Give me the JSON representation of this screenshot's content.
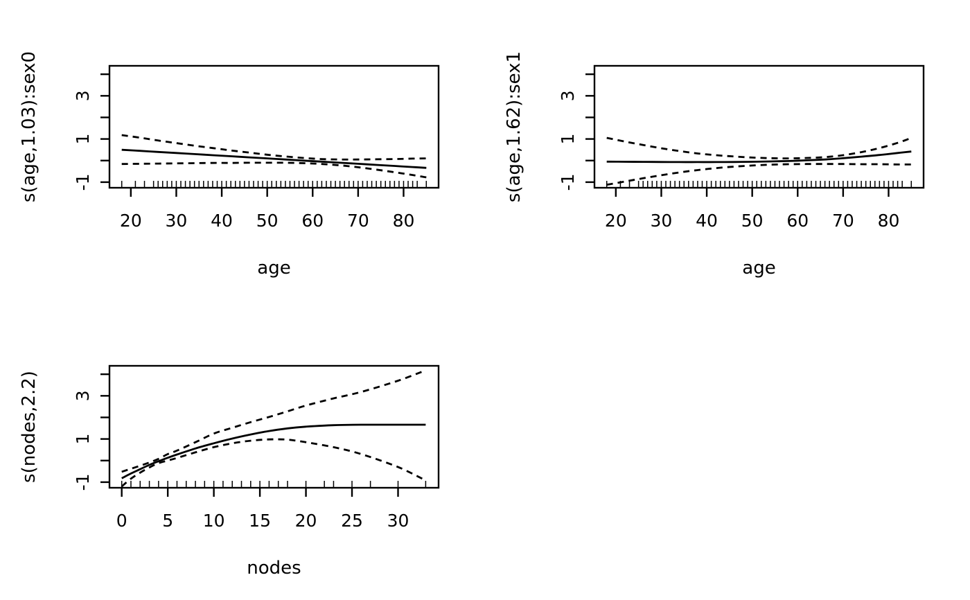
{
  "figure": {
    "description": "GAM smooth term plots (R plot.gam style), 2x2 grid, bottom-right cell empty",
    "background_color": "#ffffff",
    "line_color": "#000000"
  },
  "chart_data": [
    {
      "id": "s-age-sex0",
      "type": "line",
      "panel": "top-left",
      "title": "",
      "xlabel": "age",
      "ylabel": "s(age,1.03):sex0",
      "xlim": [
        15.3,
        87.7
      ],
      "ylim": [
        -1.26,
        4.39
      ],
      "grid": false,
      "legend_position": "none",
      "x_ticks": [
        {
          "v": 20,
          "label": "20"
        },
        {
          "v": 30,
          "label": "30"
        },
        {
          "v": 40,
          "label": "40"
        },
        {
          "v": 50,
          "label": "50"
        },
        {
          "v": 60,
          "label": "60"
        },
        {
          "v": 70,
          "label": "70"
        },
        {
          "v": 80,
          "label": "80"
        }
      ],
      "y_ticks": [
        {
          "v": -1,
          "label": "-1"
        },
        {
          "v": 0,
          "label": ""
        },
        {
          "v": 1,
          "label": "1"
        },
        {
          "v": 2,
          "label": ""
        },
        {
          "v": 3,
          "label": "3"
        },
        {
          "v": 4,
          "label": ""
        }
      ],
      "x": [
        18,
        22,
        26,
        30,
        34,
        38,
        42,
        46,
        50,
        54,
        58,
        62,
        66,
        70,
        74,
        78,
        82,
        85
      ],
      "series": [
        {
          "name": "fit",
          "style": "solid",
          "values": [
            0.5,
            0.45,
            0.4,
            0.35,
            0.3,
            0.25,
            0.2,
            0.15,
            0.1,
            0.05,
            0.0,
            -0.05,
            -0.1,
            -0.15,
            -0.2,
            -0.25,
            -0.3,
            -0.34
          ]
        },
        {
          "name": "upper-95ci",
          "style": "dashed",
          "values": [
            1.18,
            1.06,
            0.93,
            0.81,
            0.69,
            0.58,
            0.47,
            0.37,
            0.27,
            0.19,
            0.12,
            0.07,
            0.05,
            0.05,
            0.06,
            0.07,
            0.09,
            0.1
          ]
        },
        {
          "name": "lower-95ci",
          "style": "dashed",
          "values": [
            -0.16,
            -0.15,
            -0.14,
            -0.13,
            -0.12,
            -0.11,
            -0.11,
            -0.1,
            -0.1,
            -0.1,
            -0.12,
            -0.16,
            -0.22,
            -0.31,
            -0.42,
            -0.54,
            -0.67,
            -0.78
          ]
        }
      ],
      "rug_x": [
        18,
        21,
        23,
        25,
        26,
        27,
        28,
        29,
        30,
        31,
        32,
        33,
        34,
        35,
        36,
        37,
        38,
        39,
        40,
        41,
        42,
        43,
        44,
        45,
        46,
        47,
        48,
        49,
        50,
        51,
        52,
        53,
        54,
        55,
        56,
        57,
        58,
        59,
        60,
        61,
        62,
        63,
        64,
        65,
        66,
        67,
        68,
        69,
        70,
        71,
        72,
        73,
        74,
        75,
        76,
        77,
        78,
        79,
        80,
        81,
        82,
        83,
        85
      ]
    },
    {
      "id": "s-age-sex1",
      "type": "line",
      "panel": "top-right",
      "title": "",
      "xlabel": "age",
      "ylabel": "s(age,1.62):sex1",
      "xlim": [
        15.3,
        87.7
      ],
      "ylim": [
        -1.26,
        4.39
      ],
      "grid": false,
      "legend_position": "none",
      "x_ticks": [
        {
          "v": 20,
          "label": "20"
        },
        {
          "v": 30,
          "label": "30"
        },
        {
          "v": 40,
          "label": "40"
        },
        {
          "v": 50,
          "label": "50"
        },
        {
          "v": 60,
          "label": "60"
        },
        {
          "v": 70,
          "label": "70"
        },
        {
          "v": 80,
          "label": "80"
        }
      ],
      "y_ticks": [
        {
          "v": -1,
          "label": "-1"
        },
        {
          "v": 0,
          "label": ""
        },
        {
          "v": 1,
          "label": "1"
        },
        {
          "v": 2,
          "label": ""
        },
        {
          "v": 3,
          "label": "3"
        },
        {
          "v": 4,
          "label": ""
        }
      ],
      "x": [
        18,
        22,
        26,
        30,
        34,
        38,
        42,
        46,
        50,
        54,
        58,
        62,
        66,
        70,
        74,
        78,
        82,
        85
      ],
      "series": [
        {
          "name": "fit",
          "style": "solid",
          "values": [
            -0.05,
            -0.055,
            -0.06,
            -0.065,
            -0.07,
            -0.07,
            -0.07,
            -0.065,
            -0.055,
            -0.04,
            -0.02,
            0.01,
            0.05,
            0.11,
            0.18,
            0.26,
            0.35,
            0.42
          ]
        },
        {
          "name": "upper-95ci",
          "style": "dashed",
          "values": [
            1.05,
            0.88,
            0.72,
            0.57,
            0.44,
            0.33,
            0.25,
            0.19,
            0.14,
            0.11,
            0.1,
            0.12,
            0.16,
            0.25,
            0.39,
            0.58,
            0.82,
            1.05
          ]
        },
        {
          "name": "lower-95ci",
          "style": "dashed",
          "values": [
            -1.12,
            -0.97,
            -0.82,
            -0.68,
            -0.55,
            -0.44,
            -0.35,
            -0.28,
            -0.23,
            -0.19,
            -0.17,
            -0.16,
            -0.16,
            -0.16,
            -0.17,
            -0.17,
            -0.18,
            -0.18
          ]
        }
      ],
      "rug_x": [
        18,
        21,
        23,
        25,
        26,
        27,
        28,
        29,
        30,
        31,
        32,
        33,
        34,
        35,
        36,
        37,
        38,
        39,
        40,
        41,
        42,
        43,
        44,
        45,
        46,
        47,
        48,
        49,
        50,
        51,
        52,
        53,
        54,
        55,
        56,
        57,
        58,
        59,
        60,
        61,
        62,
        63,
        64,
        65,
        66,
        67,
        68,
        69,
        70,
        71,
        72,
        73,
        74,
        75,
        76,
        77,
        78,
        79,
        80,
        81,
        82,
        83,
        85
      ]
    },
    {
      "id": "s-nodes",
      "type": "line",
      "panel": "bottom-left",
      "title": "",
      "xlabel": "nodes",
      "ylabel": "s(nodes,2.2)",
      "xlim": [
        -1.33,
        34.4
      ],
      "ylim": [
        -1.26,
        4.39
      ],
      "grid": false,
      "legend_position": "none",
      "x_ticks": [
        {
          "v": 0,
          "label": "0"
        },
        {
          "v": 5,
          "label": "5"
        },
        {
          "v": 10,
          "label": "10"
        },
        {
          "v": 15,
          "label": "15"
        },
        {
          "v": 20,
          "label": "20"
        },
        {
          "v": 25,
          "label": "25"
        },
        {
          "v": 30,
          "label": "30"
        }
      ],
      "y_ticks": [
        {
          "v": -1,
          "label": "-1"
        },
        {
          "v": 0,
          "label": ""
        },
        {
          "v": 1,
          "label": "1"
        },
        {
          "v": 2,
          "label": ""
        },
        {
          "v": 3,
          "label": "3"
        },
        {
          "v": 4,
          "label": ""
        }
      ],
      "x": [
        0,
        1,
        2,
        3,
        4,
        5,
        6,
        8,
        10,
        12,
        14,
        16,
        18,
        20,
        23,
        26,
        30,
        33
      ],
      "series": [
        {
          "name": "fit",
          "style": "solid",
          "values": [
            -0.82,
            -0.6,
            -0.4,
            -0.2,
            -0.03,
            0.13,
            0.28,
            0.56,
            0.8,
            1.02,
            1.21,
            1.37,
            1.49,
            1.57,
            1.64,
            1.66,
            1.66,
            1.66
          ]
        },
        {
          "name": "upper-95ci",
          "style": "dashed",
          "values": [
            -0.52,
            -0.38,
            -0.24,
            -0.09,
            0.08,
            0.3,
            0.46,
            0.85,
            1.25,
            1.52,
            1.78,
            2.02,
            2.28,
            2.55,
            2.88,
            3.18,
            3.7,
            4.18
          ]
        },
        {
          "name": "lower-95ci",
          "style": "dashed",
          "values": [
            -1.2,
            -0.84,
            -0.56,
            -0.32,
            -0.12,
            0.0,
            0.12,
            0.38,
            0.62,
            0.8,
            0.92,
            0.98,
            0.97,
            0.85,
            0.62,
            0.3,
            -0.3,
            -0.92
          ]
        }
      ],
      "rug_x": [
        0,
        1,
        2,
        3,
        4,
        5,
        6,
        7,
        8,
        9,
        10,
        11,
        12,
        13,
        14,
        15,
        16,
        17,
        18,
        20,
        22,
        23,
        25,
        27,
        30,
        33
      ]
    }
  ]
}
